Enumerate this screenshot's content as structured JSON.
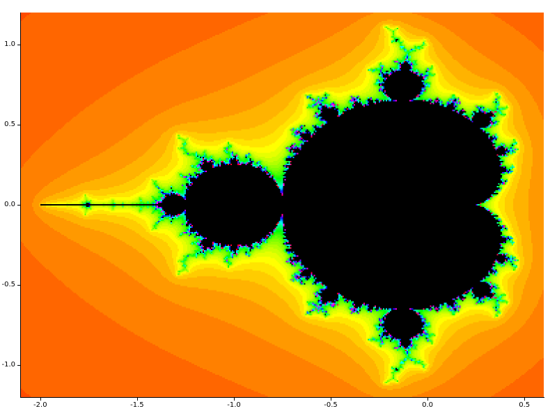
{
  "figure": {
    "background_color": "#ffffff",
    "axis_color": "#000000",
    "tick_label_color": "#000000"
  },
  "chart_data": {
    "type": "heatmap",
    "subtype": "mandelbrot-escape-time-fractal",
    "description": "Mandelbrot set fractal rendered by escape-time iteration of z -> z^2 + c. Points inside the set (main cardioid, period-2 bulb at -1, needle to -2 with mini-Mandelbrot near -1.76, and satellite bulbs) are black; exterior points are colored by iteration count through an HSV colormap running orange, amber, yellow, green, cyan, blue, magenta toward the boundary.",
    "iteration_formula": "z_{n+1} = z_n^2 + c",
    "x_range": [
      -2.1,
      0.6
    ],
    "y_range": [
      -1.2,
      1.2
    ],
    "x_tick_values": [
      -2.0,
      -1.5,
      -1.0,
      -0.5,
      0.0,
      0.5
    ],
    "x_tick_labels": [
      "-2.0",
      "-1.5",
      "-1.0",
      "-0.5",
      "0.0",
      "0.5"
    ],
    "y_tick_values": [
      -1.0,
      -0.5,
      0.0,
      0.5,
      1.0
    ],
    "y_tick_labels": [
      "-1.0",
      "-0.5",
      "0.0",
      "0.5",
      "1.0"
    ],
    "max_iterations": 60,
    "escape_radius": 16,
    "grid_resolution": [
      377,
      277
    ],
    "colormap": "hsv",
    "hue_degrees_per_iteration": 6,
    "interior_color": "#000000",
    "far_field_color_example": "#ff4d00",
    "grid_lines": false,
    "legend": false,
    "title": ""
  }
}
